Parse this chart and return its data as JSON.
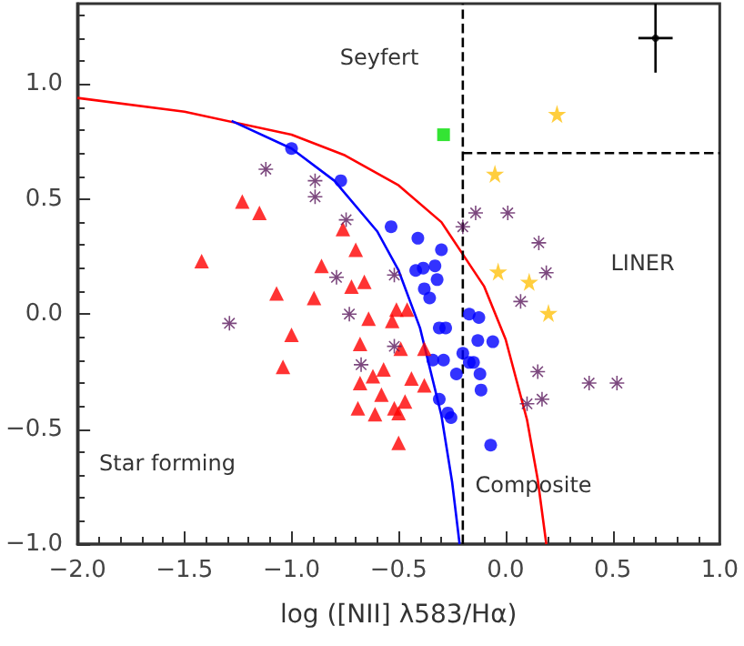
{
  "chart_data": {
    "type": "scatter",
    "xlabel": "log ([NII] λ583/Hα)",
    "xlim": [
      -2,
      1
    ],
    "ylim": [
      -1,
      1.35
    ],
    "xticks": [
      {
        "value": -2,
        "label": "−2.0"
      },
      {
        "value": -1.5,
        "label": "−1.5"
      },
      {
        "value": -1,
        "label": "−1.0"
      },
      {
        "value": -0.5,
        "label": "−0.5"
      },
      {
        "value": 0,
        "label": "0.0"
      },
      {
        "value": 0.5,
        "label": "0.5"
      },
      {
        "value": 1,
        "label": "1.0"
      }
    ],
    "yticks": [
      {
        "value": -1,
        "label": "−1.0"
      },
      {
        "value": -0.5,
        "label": "−0.5"
      },
      {
        "value": 0,
        "label": "0.0"
      },
      {
        "value": 0.5,
        "label": "0.5"
      },
      {
        "value": 1,
        "label": "1.0"
      }
    ],
    "grid": false,
    "annotations": [
      "Seyfert",
      "LINER",
      "Star forming",
      "Composite"
    ],
    "series": [
      {
        "type": "line",
        "color": "#ff0000",
        "marker": "none",
        "line_style": "solid",
        "x": [
          -2,
          -1.5,
          -1,
          -0.75,
          -0.5,
          -0.3,
          -0.1,
          0,
          0.1,
          0.15,
          0.19
        ],
        "values": [
          0.94,
          0.88,
          0.78,
          0.69,
          0.56,
          0.4,
          0.12,
          -0.11,
          -0.46,
          -0.72,
          -1
        ]
      },
      {
        "type": "line",
        "color": "#0000ff",
        "marker": "none",
        "line_style": "solid",
        "x": [
          -1.28,
          -1,
          -0.8,
          -0.6,
          -0.5,
          -0.4,
          -0.3,
          -0.25,
          -0.215
        ],
        "values": [
          0.84,
          0.72,
          0.58,
          0.36,
          0.19,
          -0.06,
          -0.44,
          -0.73,
          -1
        ]
      },
      {
        "type": "line",
        "color": "#000000",
        "marker": "none",
        "line_style": "dashed",
        "x": [
          -0.2,
          -0.2
        ],
        "values": [
          -1,
          1.35
        ]
      },
      {
        "type": "line",
        "color": "#000000",
        "marker": "none",
        "line_style": "dashed",
        "x": [
          -0.2,
          1
        ],
        "values": [
          0.7,
          0.7
        ]
      },
      {
        "color": "#0000ff",
        "marker": "circle",
        "x": [
          -1,
          -0.77,
          -0.535,
          -0.41,
          -0.3,
          -0.42,
          -0.385,
          -0.33,
          -0.32,
          -0.38,
          -0.355,
          -0.31,
          -0.28,
          -0.17,
          -0.125,
          -0.13,
          -0.06,
          -0.2,
          -0.34,
          -0.29,
          -0.17,
          -0.15,
          -0.23,
          -0.12,
          -0.115,
          -0.31,
          -0.27,
          -0.255,
          -0.07
        ],
        "values": [
          0.72,
          0.58,
          0.38,
          0.33,
          0.28,
          0.19,
          0.2,
          0.21,
          0.15,
          0.11,
          0.07,
          -0.06,
          -0.06,
          0,
          -0.015,
          -0.115,
          -0.12,
          -0.17,
          -0.2,
          -0.2,
          -0.21,
          -0.21,
          -0.26,
          -0.26,
          -0.33,
          -0.37,
          -0.43,
          -0.45,
          -0.57
        ]
      },
      {
        "color": "#ff0000",
        "marker": "triangle",
        "x": [
          -1.42,
          -1.23,
          -1.15,
          -1.07,
          -0.895,
          -0.86,
          -0.76,
          -0.7,
          -0.72,
          -0.66,
          -0.64,
          -1,
          -1.04,
          -0.68,
          -0.68,
          -0.62,
          -0.69,
          -0.61,
          -0.58,
          -0.57,
          -0.51,
          -0.46,
          -0.53,
          -0.49,
          -0.38,
          -0.44,
          -0.38,
          -0.47,
          -0.52,
          -0.5,
          -0.5
        ],
        "values": [
          0.23,
          0.49,
          0.44,
          0.09,
          0.07,
          0.21,
          0.37,
          0.28,
          0.12,
          0.14,
          -0.02,
          -0.09,
          -0.23,
          -0.13,
          -0.3,
          -0.27,
          -0.41,
          -0.435,
          -0.35,
          -0.24,
          0.02,
          0.02,
          -0.03,
          -0.15,
          -0.15,
          -0.28,
          -0.31,
          -0.38,
          -0.41,
          -0.43,
          -0.56
        ]
      },
      {
        "color": "#5b1a5e",
        "marker": "cross",
        "x": [
          -1.12,
          -0.89,
          -0.89,
          -0.745,
          -0.79,
          -0.73,
          -1.29,
          -0.675,
          -0.52,
          -0.52,
          -0.2,
          -0.14,
          0.01,
          0.155,
          0.19,
          0.07,
          0.15,
          0.1,
          0.17,
          0.39,
          0.52
        ],
        "values": [
          0.63,
          0.58,
          0.51,
          0.41,
          0.16,
          0,
          -0.04,
          -0.22,
          -0.14,
          0.17,
          0.38,
          0.44,
          0.44,
          0.31,
          0.18,
          0.055,
          -0.25,
          -0.39,
          -0.37,
          -0.3,
          -0.3
        ]
      },
      {
        "color": "#ffc20e",
        "marker": "star",
        "x": [
          0.24,
          -0.05,
          -0.035,
          0.11,
          0.2
        ],
        "values": [
          0.87,
          0.61,
          0.185,
          0.14,
          0.005
        ]
      },
      {
        "color": "#00dd00",
        "marker": "square",
        "x": [
          -0.29
        ],
        "values": [
          0.78
        ]
      },
      {
        "color": "#000000",
        "marker": "circle",
        "x": [
          0.7
        ],
        "values": [
          1.2
        ],
        "errors": [
          0.15
        ],
        "xerrors": [
          0.08
        ]
      }
    ]
  }
}
